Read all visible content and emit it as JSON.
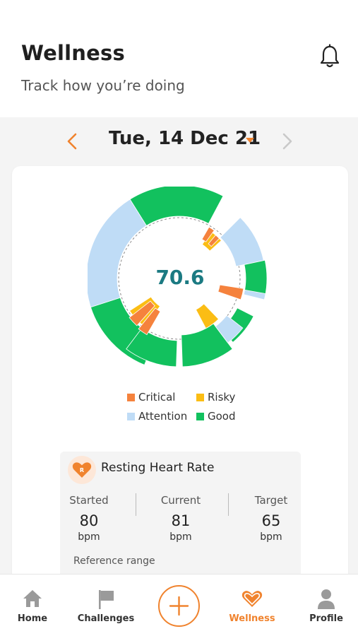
{
  "header": {
    "title": "Wellness",
    "subtitle": "Track how you’re doing",
    "bell_icon": "bell-icon"
  },
  "date_bar": {
    "date": "Tue, 14 Dec 21",
    "prev_icon": "chevron-left-icon",
    "next_icon": "chevron-right-icon",
    "dropdown_icon": "caret-down-icon"
  },
  "wellness_chart": {
    "score": "70.6",
    "legend": [
      {
        "label": "Critical",
        "color": "#f5823d"
      },
      {
        "label": "Risky",
        "color": "#fbbd14"
      },
      {
        "label": "Attention",
        "color": "#bfdcf6"
      },
      {
        "label": "Good",
        "color": "#12c15e"
      }
    ]
  },
  "metric": {
    "title": "Resting Heart Rate",
    "badge_letter": "R",
    "icon": "heart-icon",
    "columns": [
      {
        "label": "Started",
        "value": "80",
        "unit": "bpm"
      },
      {
        "label": "Current",
        "value": "81",
        "unit": "bpm"
      },
      {
        "label": "Target",
        "value": "65",
        "unit": "bpm"
      }
    ],
    "reference_label": "Reference range"
  },
  "tabbar": {
    "tabs": [
      {
        "label": "Home",
        "icon": "home-icon"
      },
      {
        "label": "Challenges",
        "icon": "flag-icon"
      },
      {
        "label": "Wellness",
        "icon": "heart-icon",
        "active": true
      },
      {
        "label": "Profile",
        "icon": "person-icon"
      }
    ],
    "add_icon": "plus-icon"
  },
  "colors": {
    "accent": "#f0832e",
    "score_text": "#1b7a82",
    "critical": "#f5823d",
    "risky": "#fbbd14",
    "attention": "#bfdcf6",
    "good": "#12c15e"
  }
}
